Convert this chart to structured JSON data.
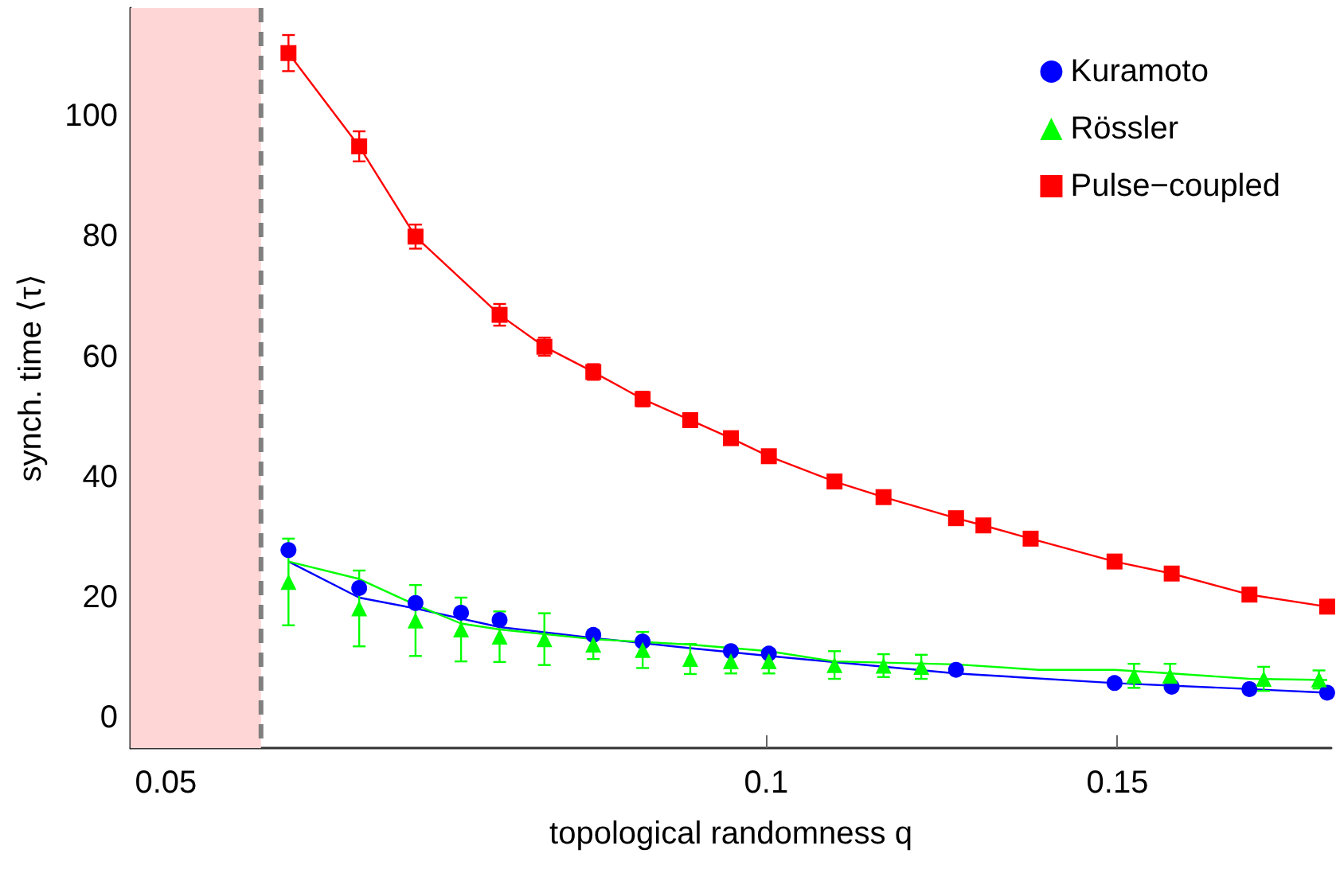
{
  "chart_data": {
    "type": "scatter",
    "xlabel": "topological randomness q",
    "ylabel": "synch. time ⟨τ⟩",
    "log": "x",
    "xlim": [
      0.048,
      0.192
    ],
    "xticks": [
      0.05,
      0.1,
      0.15
    ],
    "ylim": [
      -5,
      118
    ],
    "yticks": [
      0,
      20,
      40,
      60,
      80,
      100
    ],
    "grid": false,
    "legend": "top right",
    "ref_lines": [
      {
        "axis": "x",
        "value": 0.0558,
        "color": "#808080",
        "line_style": "dashed"
      }
    ],
    "bands": [
      {
        "axis": "x",
        "from": 0.048,
        "to": 0.0558,
        "color": "#ffd6d6"
      }
    ],
    "series": [
      {
        "type": "line",
        "color": "#0000ff",
        "marker": "none",
        "x": [
          0.0576,
          0.0625,
          0.0667,
          0.0735,
          0.0819,
          0.0916,
          0.1003,
          0.1245,
          0.1495,
          0.1747,
          0.1911
        ],
        "values": [
          26,
          20,
          18.2,
          15.1,
          13.3,
          11.6,
          10.3,
          7.4,
          5.8,
          4.8,
          4.2
        ]
      },
      {
        "type": "line",
        "color": "#00ff00",
        "marker": "none",
        "x": [
          0.0576,
          0.0625,
          0.0667,
          0.0703,
          0.0735,
          0.0819,
          0.0916,
          0.1003,
          0.1082,
          0.1245,
          0.137,
          0.1495,
          0.1597,
          0.1747,
          0.1911
        ],
        "values": [
          26,
          23.1,
          18.8,
          15.7,
          14.7,
          13.1,
          12.2,
          11.1,
          9.4,
          8.9,
          8,
          8,
          7.4,
          6.5,
          6.3
        ]
      },
      {
        "type": "line",
        "color": "#ff0000",
        "marker": "none",
        "x": [
          0.0576,
          0.0625,
          0.0667,
          0.0735,
          0.0774,
          0.0819,
          0.0867,
          0.0916,
          0.096,
          0.1003,
          0.1082,
          0.1145,
          0.1245,
          0.1285,
          0.1357,
          0.1495,
          0.1597,
          0.1747,
          0.1911
        ],
        "values": [
          110.5,
          95,
          80,
          67,
          61.7,
          57.5,
          53,
          49.5,
          46.5,
          43.5,
          39.3,
          36.7,
          33.2,
          32,
          29.8,
          26,
          24,
          20.5,
          18.5
        ]
      },
      {
        "name": "Kuramoto",
        "color": "#0000ff",
        "marker": "circle",
        "x": [
          0.0576,
          0.0625,
          0.0667,
          0.0703,
          0.0735,
          0.0819,
          0.0867,
          0.096,
          0.1003,
          0.1245,
          0.1495,
          0.1597,
          0.1747,
          0.1911
        ],
        "values": [
          27.9,
          21.6,
          19.1,
          17.5,
          16.3,
          13.8,
          12.7,
          11.1,
          10.7,
          8,
          5.8,
          5.2,
          4.8,
          4.2
        ]
      },
      {
        "name": "Rössler",
        "color": "#00ff00",
        "marker": "triangle",
        "x": [
          0.0576,
          0.0625,
          0.0667,
          0.0703,
          0.0735,
          0.0774,
          0.0819,
          0.0867,
          0.0916,
          0.096,
          0.1003,
          0.1082,
          0.1145,
          0.1196,
          0.1529,
          0.1594,
          0.1776,
          0.1893
        ],
        "values": [
          22.6,
          18.2,
          16.2,
          14.7,
          13.5,
          13.1,
          12.2,
          11.3,
          9.8,
          9.4,
          9.4,
          8.8,
          8.7,
          8.5,
          7,
          7,
          6.5,
          6.4
        ],
        "errors": [
          7.2,
          6.3,
          5.9,
          5.3,
          4.2,
          4.3,
          2.4,
          3,
          2.5,
          2,
          2,
          2.3,
          1.9,
          2,
          2,
          2,
          2,
          1.5
        ]
      },
      {
        "name": "Pulse−coupled",
        "color": "#ff0000",
        "marker": "square",
        "x": [
          0.0576,
          0.0625,
          0.0667,
          0.0735,
          0.0774,
          0.0819,
          0.0867,
          0.0916,
          0.096,
          0.1003,
          0.1082,
          0.1145,
          0.1245,
          0.1285,
          0.1357,
          0.1495,
          0.1597,
          0.1747,
          0.1911
        ],
        "values": [
          110.5,
          95,
          80,
          67,
          61.7,
          57.5,
          53,
          49.5,
          46.5,
          43.5,
          39.3,
          36.7,
          33.2,
          32,
          29.8,
          26,
          24,
          20.5,
          18.5
        ],
        "errors": [
          3,
          2.5,
          2,
          1.8,
          1.5,
          1.3,
          1.2,
          1,
          1,
          1,
          0.5,
          0.5,
          0.5,
          0.5,
          0.5,
          0.5,
          0.5,
          0.5,
          0.5
        ]
      }
    ]
  }
}
